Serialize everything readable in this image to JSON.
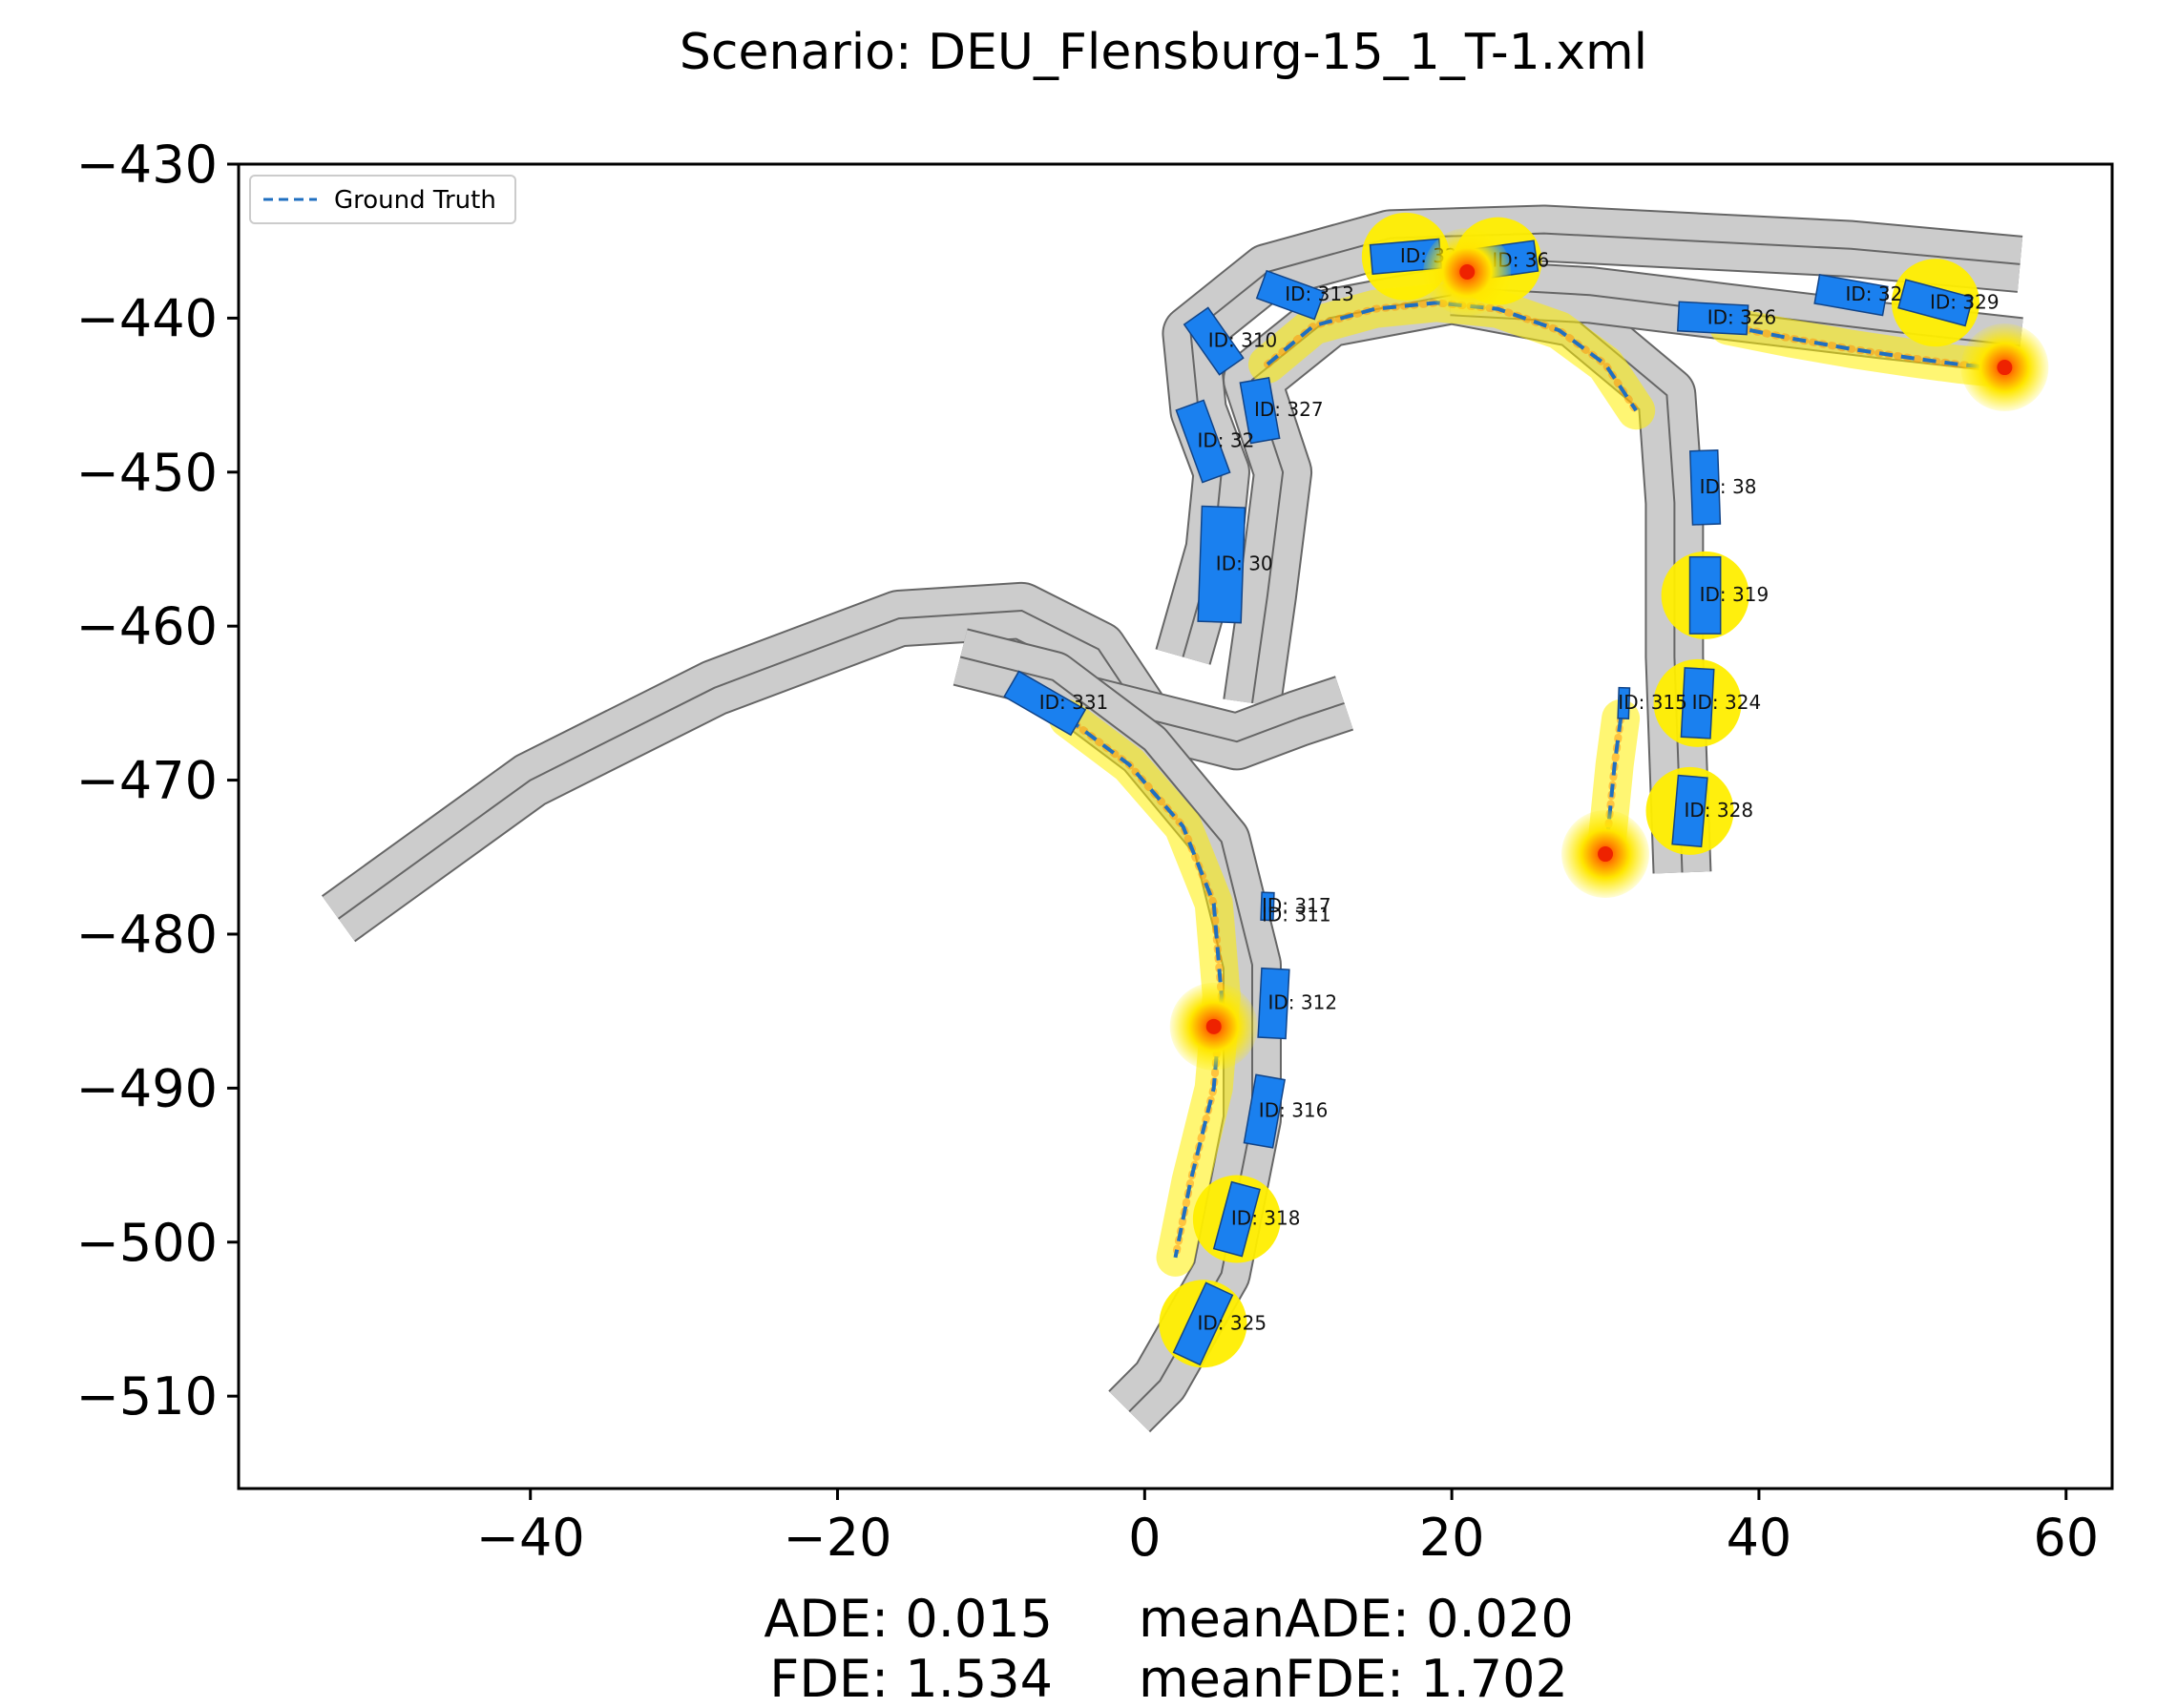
{
  "chart_data": {
    "type": "scatter",
    "title": "Scenario: DEU_Flensburg-15_1_T-1.xml",
    "xlabel": "",
    "ylabel": "",
    "xlim": [
      -59,
      63
    ],
    "ylim": [
      -516,
      -430
    ],
    "xticks": [
      -40,
      -20,
      0,
      20,
      40,
      60
    ],
    "yticks": [
      -430,
      -440,
      -450,
      -460,
      -470,
      -480,
      -490,
      -500,
      -510
    ],
    "grid": false,
    "legend": {
      "position": "top-left",
      "entries": [
        {
          "label": "Ground Truth",
          "style": "dashed",
          "color": "#1f6fc0"
        }
      ]
    },
    "metrics": [
      {
        "line": 1,
        "left": "ADE: 0.015",
        "right": "meanADE: 0.020"
      },
      {
        "line": 2,
        "left": "FDE: 1.534",
        "right": "meanFDE: 1.702"
      }
    ],
    "roads": [
      {
        "id": "r1",
        "points": [
          [
            -52.5,
            -479
          ],
          [
            -40,
            -470
          ],
          [
            -28,
            -464
          ],
          [
            -16,
            -459.5
          ],
          [
            -8,
            -459
          ],
          [
            -3,
            -461.5
          ],
          [
            0,
            -466
          ]
        ],
        "width": 3.5
      },
      {
        "id": "r2",
        "points": [
          [
            2.5,
            -462
          ],
          [
            4.5,
            -455
          ],
          [
            5,
            -450
          ],
          [
            3.5,
            -446
          ],
          [
            3,
            -441
          ],
          [
            8,
            -437
          ],
          [
            16,
            -434.8
          ],
          [
            26,
            -434.5
          ],
          [
            36,
            -435
          ],
          [
            46,
            -435.5
          ],
          [
            57,
            -436.5
          ]
        ],
        "width": 3.5
      },
      {
        "id": "r3",
        "points": [
          [
            7,
            -465
          ],
          [
            8,
            -458
          ],
          [
            9,
            -450
          ],
          [
            7,
            -444
          ],
          [
            12,
            -440
          ],
          [
            20,
            -438.5
          ],
          [
            28,
            -440
          ],
          [
            34,
            -445
          ],
          [
            34.5,
            -452
          ],
          [
            34.5,
            -462
          ],
          [
            35,
            -476
          ]
        ],
        "width": 3.6
      },
      {
        "id": "r4",
        "points": [
          [
            -4,
            -465
          ],
          [
            2,
            -466.5
          ],
          [
            6,
            -467.5
          ],
          [
            10,
            -466
          ],
          [
            13,
            -465
          ]
        ],
        "width": 3.5
      },
      {
        "id": "r5",
        "points": [
          [
            -12,
            -462
          ],
          [
            -6,
            -463.5
          ],
          [
            0,
            -468
          ],
          [
            5,
            -474
          ],
          [
            7,
            -482
          ],
          [
            7,
            -492
          ],
          [
            5,
            -502
          ],
          [
            1,
            -509
          ],
          [
            -1,
            -511
          ]
        ],
        "width": 3.6
      },
      {
        "id": "r6",
        "points": [
          [
            20,
            -438
          ],
          [
            29,
            -438.5
          ],
          [
            38,
            -439.6
          ],
          [
            48,
            -440.8
          ],
          [
            57,
            -441.8
          ]
        ],
        "width": 3.5
      }
    ],
    "ground_truth": [
      {
        "agent": "331",
        "x": [
          -5,
          -1,
          2.5,
          4.5,
          5,
          4.5,
          3,
          2
        ],
        "y": [
          -466,
          -469,
          -473,
          -478,
          -484,
          -490,
          -496,
          -501
        ]
      },
      {
        "agent": "36",
        "x": [
          8,
          11,
          15,
          19,
          23,
          27,
          30,
          32
        ],
        "y": [
          -443,
          -440.5,
          -439.4,
          -439,
          -439.4,
          -440.8,
          -443,
          -446
        ]
      },
      {
        "agent": "329",
        "x": [
          38,
          42,
          46,
          50,
          53,
          56
        ],
        "y": [
          -440.5,
          -441.3,
          -442,
          -442.6,
          -443,
          -443.3
        ]
      },
      {
        "agent": "315",
        "x": [
          31,
          30.6,
          30.3,
          30
        ],
        "y": [
          -466,
          -469,
          -472,
          -475
        ]
      }
    ],
    "vehicles": [
      {
        "id": "ID: 320",
        "x": 17,
        "y": -436,
        "heading": -5,
        "length": 4.5,
        "width": 1.9,
        "highlight": true
      },
      {
        "id": "ID: 36",
        "x": 23,
        "y": -436.3,
        "heading": -8,
        "length": 5,
        "width": 2,
        "highlight": true
      },
      {
        "id": "ID: 313",
        "x": 9.5,
        "y": -438.5,
        "heading": 20,
        "length": 4,
        "width": 1.9,
        "highlight": false
      },
      {
        "id": "ID: 310",
        "x": 4.5,
        "y": -441.5,
        "heading": 55,
        "length": 4,
        "width": 1.9,
        "highlight": false
      },
      {
        "id": "ID: 327",
        "x": 7.5,
        "y": -446,
        "heading": 80,
        "length": 4,
        "width": 1.9,
        "highlight": false
      },
      {
        "id": "ID: 32",
        "x": 3.8,
        "y": -448,
        "heading": 70,
        "length": 5,
        "width": 1.9,
        "highlight": false
      },
      {
        "id": "ID: 30",
        "x": 5,
        "y": -456,
        "heading": 92,
        "length": 7.5,
        "width": 2.8,
        "highlight": false
      },
      {
        "id": "ID: 331",
        "x": -6.5,
        "y": -465,
        "heading": 30,
        "length": 5,
        "width": 1.9,
        "highlight": false
      },
      {
        "id": "ID: 326",
        "x": 37,
        "y": -440,
        "heading": 3,
        "length": 4.5,
        "width": 1.9,
        "highlight": false
      },
      {
        "id": "ID: 322",
        "x": 46,
        "y": -438.5,
        "heading": 10,
        "length": 4.5,
        "width": 1.9,
        "highlight": false
      },
      {
        "id": "ID: 329",
        "x": 51.5,
        "y": -439,
        "heading": 15,
        "length": 4.5,
        "width": 1.9,
        "highlight": true
      },
      {
        "id": "ID: 38",
        "x": 36.5,
        "y": -451,
        "heading": 88,
        "length": 4.8,
        "width": 1.8,
        "highlight": false
      },
      {
        "id": "ID: 319",
        "x": 36.5,
        "y": -458,
        "heading": 90,
        "length": 5,
        "width": 2,
        "highlight": true
      },
      {
        "id": "ID: 324",
        "x": 36,
        "y": -465,
        "heading": 93,
        "length": 4.5,
        "width": 1.9,
        "highlight": true
      },
      {
        "id": "ID: 328",
        "x": 35.5,
        "y": -472,
        "heading": 95,
        "length": 4.5,
        "width": 1.9,
        "highlight": true
      },
      {
        "id": "ID: 315",
        "x": 31.2,
        "y": -465,
        "heading": 92,
        "length": 2,
        "width": 0.7,
        "highlight": false
      },
      {
        "id": "ID: 317",
        "x": 8,
        "y": -478.2,
        "heading": 92,
        "length": 1.8,
        "width": 0.8,
        "highlight": false
      },
      {
        "id": "ID: 311",
        "x": 8,
        "y": -478.8,
        "heading": 92,
        "length": 0.1,
        "width": 0.1,
        "highlight": false
      },
      {
        "id": "ID: 312",
        "x": 8.4,
        "y": -484.5,
        "heading": 93,
        "length": 4.5,
        "width": 1.8,
        "highlight": false
      },
      {
        "id": "ID: 316",
        "x": 7.8,
        "y": -491.5,
        "heading": 100,
        "length": 4.5,
        "width": 1.9,
        "highlight": false
      },
      {
        "id": "ID: 318",
        "x": 6,
        "y": -498.5,
        "heading": 105,
        "length": 4.5,
        "width": 1.9,
        "highlight": true
      },
      {
        "id": "ID: 325",
        "x": 3.8,
        "y": -505.3,
        "heading": 115,
        "length": 5,
        "width": 1.9,
        "highlight": true
      }
    ],
    "predicted_endpoints": [
      {
        "agent": "331",
        "x": 4.5,
        "y": -486
      },
      {
        "agent": "36",
        "x": 21,
        "y": -437
      },
      {
        "agent": "329",
        "x": 56,
        "y": -443.2
      },
      {
        "agent": "315",
        "x": 30,
        "y": -474.8
      }
    ],
    "colors": {
      "road": "#cccccc",
      "road_edge": "#666666",
      "vehicle": "#1a80ef",
      "vehicle_edge": "#114488",
      "ground_truth": "#1f6fc0",
      "highlight": "#ffee00",
      "prediction": "#ff8800",
      "endpoint": "#ee2200"
    }
  }
}
